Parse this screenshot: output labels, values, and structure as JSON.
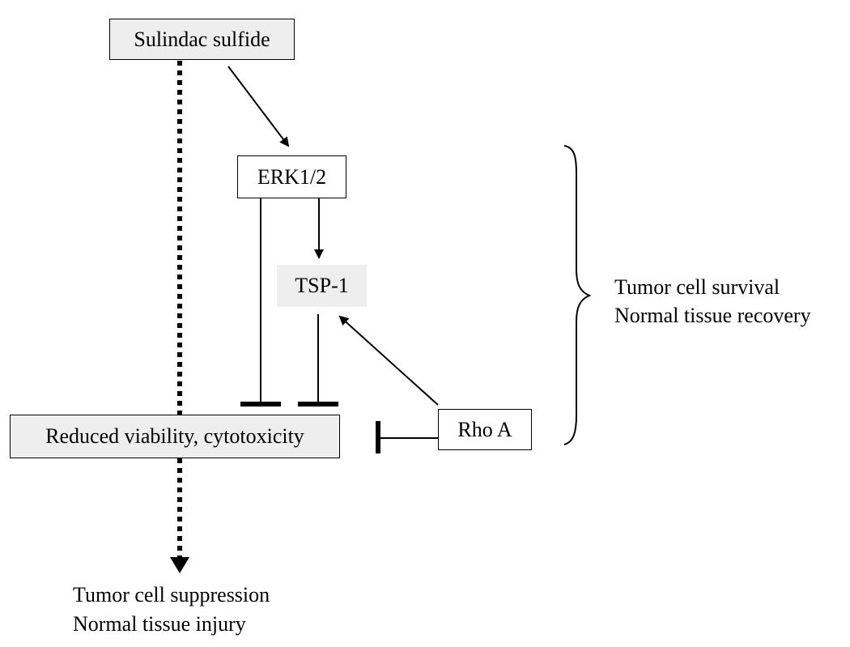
{
  "nodes": {
    "sulindac": "Sulindac sulfide",
    "erk": "ERK1/2",
    "tsp": "TSP-1",
    "viability": "Reduced viability, cytotoxicity",
    "rho": "Rho A"
  },
  "outcomes": {
    "right": [
      "Tumor cell survival",
      "Normal tissue recovery"
    ],
    "bottom": [
      "Tumor cell suppression",
      "Normal tissue injury"
    ]
  },
  "colors": {
    "stroke": "#000000",
    "box_fill_shaded": "#eeeeee",
    "box_fill_plain": "#ffffff",
    "tsp_fill": "#eeeeee"
  }
}
